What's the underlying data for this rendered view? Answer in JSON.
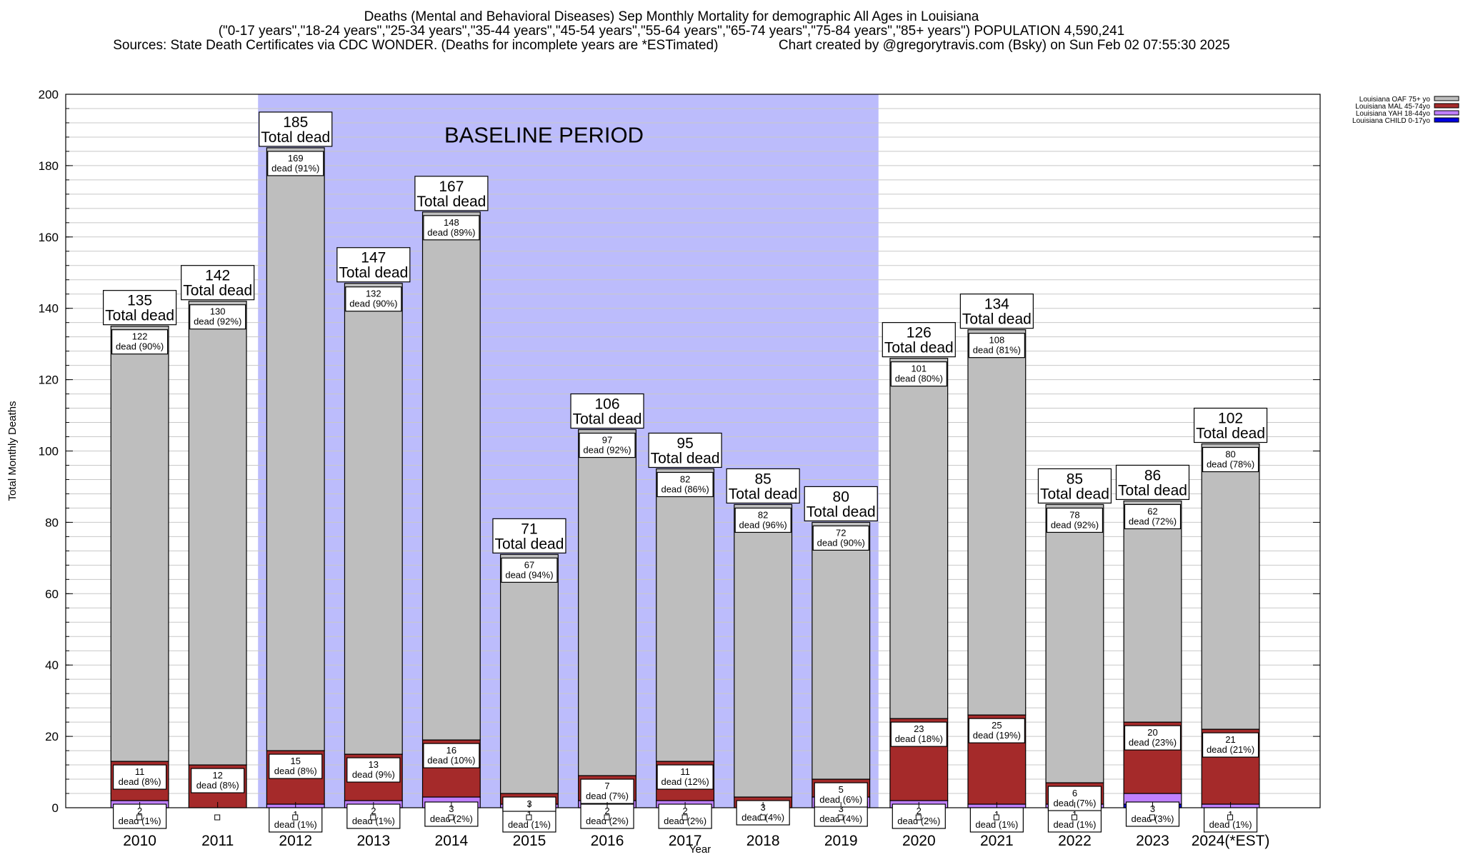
{
  "chart_data": {
    "type": "bar",
    "stacked": true,
    "title": "Deaths (Mental and Behavioral Diseases) Sep Monthly Mortality for demographic All Ages in Louisiana",
    "subtitle": "(\"0-17 years\",\"18-24 years\",\"25-34 years\",\"35-44 years\",\"45-54 years\",\"55-64 years\",\"65-74 years\",\"75-84 years\",\"85+ years\") POPULATION 4,590,241",
    "source_line": "Sources: State Death Certificates via CDC WONDER. (Deaths for incomplete years are *ESTimated)                Chart created by @gregorytravis.com (Bsky) on Sun Feb 02 07:55:30 2025",
    "xlabel": "Year",
    "ylabel": "Total Monthly Deaths",
    "ylim": [
      0,
      200
    ],
    "y_ticks": [
      0,
      20,
      40,
      60,
      80,
      100,
      120,
      140,
      160,
      180,
      200
    ],
    "y_minor_step": 4,
    "grid": true,
    "categories": [
      "2010",
      "2011",
      "2012",
      "2013",
      "2014",
      "2015",
      "2016",
      "2017",
      "2018",
      "2019",
      "2020",
      "2021",
      "2022",
      "2023",
      "2024(*EST)"
    ],
    "totals": [
      135,
      142,
      185,
      147,
      167,
      71,
      106,
      95,
      85,
      80,
      126,
      134,
      85,
      86,
      102
    ],
    "total_label_suffix": "Total dead",
    "annotation": {
      "text": "BASELINE PERIOD",
      "start": "2012",
      "end": "2019",
      "color": "#bcbcfc"
    },
    "legend_position": "top-right",
    "series": [
      {
        "name": "Louisiana CHILD 0-17yo",
        "color": "#0000e0",
        "values": [
          0,
          0,
          0,
          0,
          0,
          0,
          0,
          0,
          0,
          0,
          0,
          0,
          0,
          1,
          0
        ],
        "labels": [
          null,
          null,
          null,
          null,
          null,
          null,
          null,
          null,
          null,
          null,
          null,
          null,
          null,
          null,
          null
        ]
      },
      {
        "name": "Louisiana YAH 18-44yo",
        "color": "#c080ff",
        "values": [
          2,
          0,
          1,
          2,
          3,
          1,
          2,
          2,
          0,
          3,
          2,
          1,
          1,
          3,
          1
        ],
        "labels": [
          "2\ndead (1%)",
          null,
          "1\ndead (1%)",
          "2\ndead (1%)",
          "3\ndead (2%)",
          "1\ndead (1%)",
          "2\ndead (2%)",
          "2\ndead (2%)",
          null,
          "3\ndead (4%)",
          "2\ndead (2%)",
          "1\ndead (1%)",
          "1\ndead (1%)",
          "3\ndead (3%)",
          "1\ndead (1%)"
        ]
      },
      {
        "name": "Louisiana MAL 45-74yo",
        "color": "#a52a2a",
        "values": [
          11,
          12,
          15,
          13,
          16,
          3,
          7,
          11,
          3,
          5,
          23,
          25,
          6,
          20,
          21
        ],
        "labels": [
          "11\ndead (8%)",
          "12\ndead (8%)",
          "15\ndead (8%)",
          "13\ndead (9%)",
          "16\ndead (10%)",
          "3",
          "7\ndead (7%)",
          "11\ndead (12%)",
          "3\ndead (4%)",
          "5\ndead (6%)",
          "23\ndead (18%)",
          "25\ndead (19%)",
          "6\ndead (7%)",
          "20\ndead (23%)",
          "21\ndead (21%)"
        ]
      },
      {
        "name": "Louisiana OAF 75+ yo",
        "color": "#bebebe",
        "values": [
          122,
          130,
          169,
          132,
          148,
          67,
          97,
          82,
          82,
          72,
          101,
          108,
          78,
          62,
          80
        ],
        "labels": [
          "122\ndead (90%)",
          "130\ndead (92%)",
          "169\ndead (91%)",
          "132\ndead (90%)",
          "148\ndead (89%)",
          "67\ndead (94%)",
          "97\ndead (92%)",
          "82\ndead (86%)",
          "82\ndead (96%)",
          "72\ndead (90%)",
          "101\ndead (80%)",
          "108\ndead (81%)",
          "78\ndead (92%)",
          "62\ndead (72%)",
          "80\ndead (78%)"
        ]
      }
    ]
  }
}
